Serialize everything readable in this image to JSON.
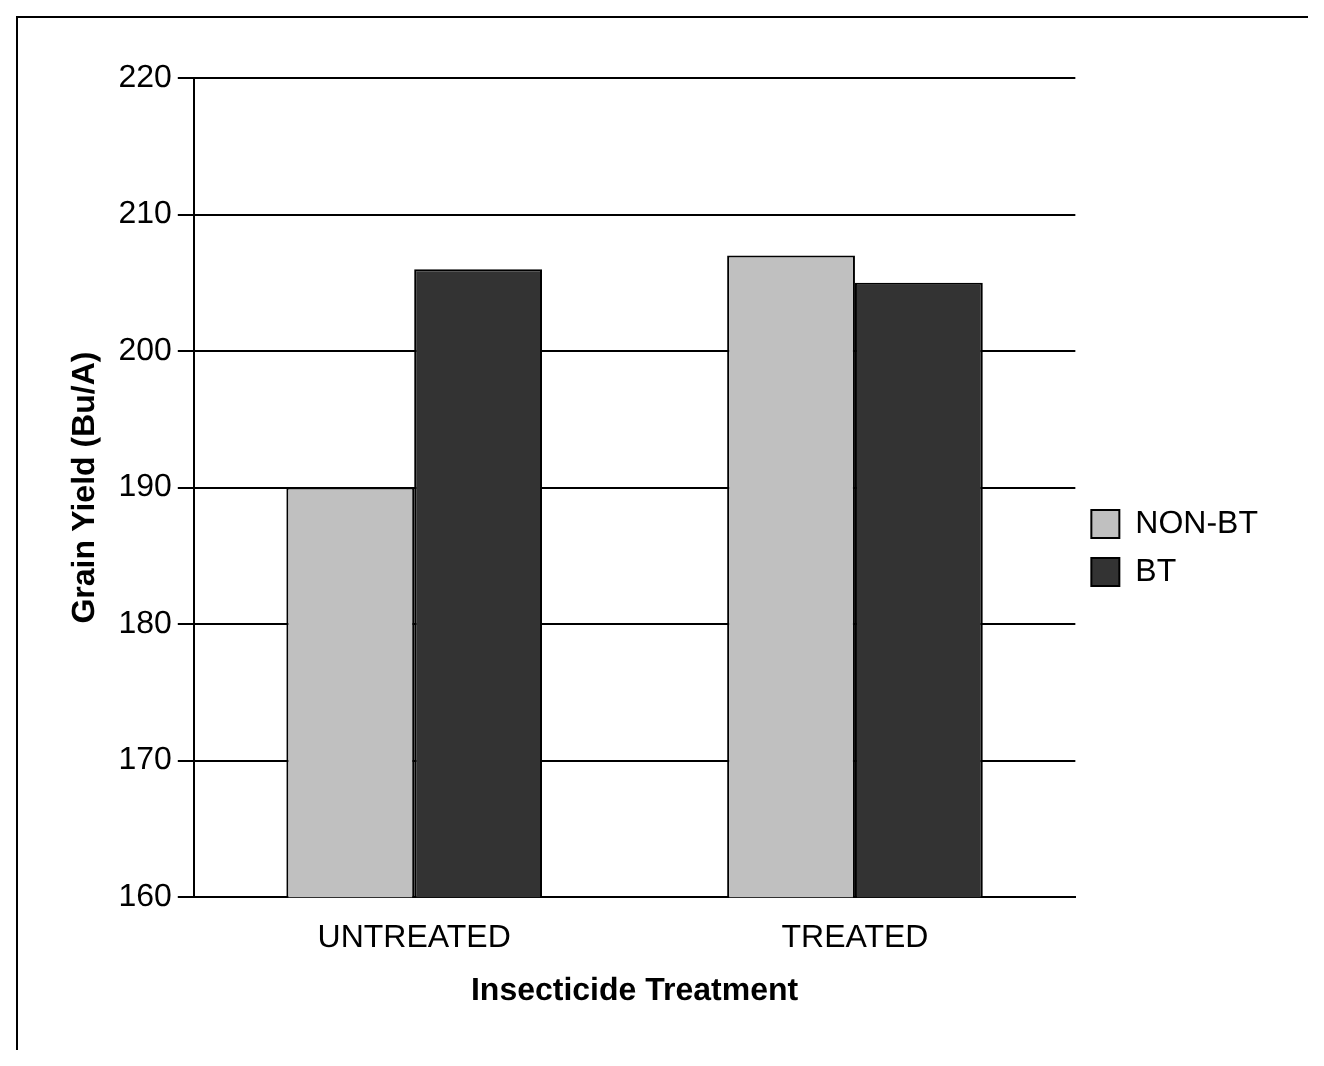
{
  "chart_data": {
    "type": "bar",
    "xlabel": "Insecticide Treatment",
    "ylabel": "Grain Yield (Bu/A)",
    "categories": [
      "UNTREATED",
      "TREATED"
    ],
    "series": [
      {
        "name": "NON-BT",
        "color": "#c0c0c0",
        "values": [
          190,
          207
        ]
      },
      {
        "name": "BT",
        "color": "#333333",
        "values": [
          206,
          205
        ]
      }
    ],
    "ylim": [
      160,
      220
    ],
    "yticks": [
      160,
      170,
      180,
      190,
      200,
      210,
      220
    ],
    "grid": "y",
    "legend": "right"
  }
}
